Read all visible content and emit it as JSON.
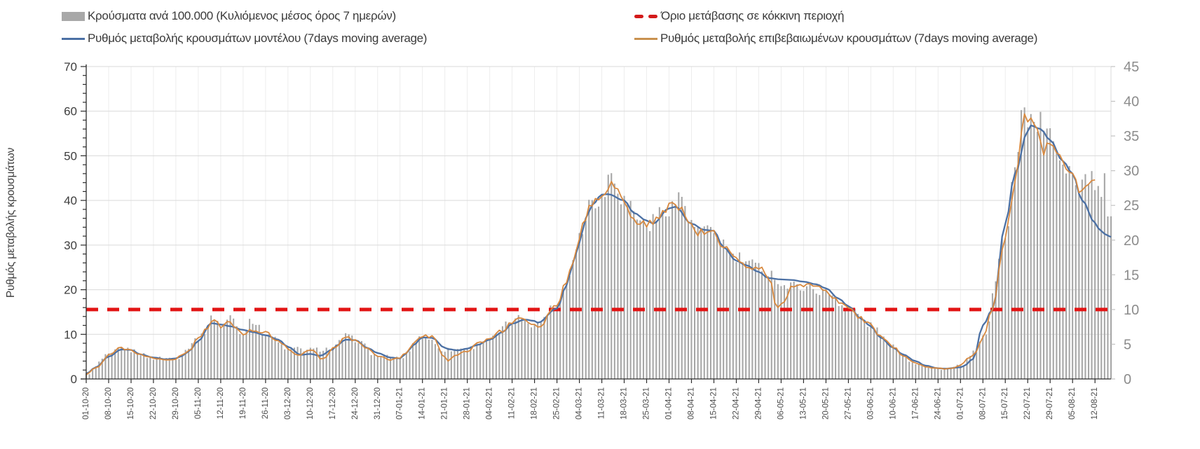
{
  "legend": {
    "items": [
      {
        "id": "cases",
        "label": "Κρούσματα ανά 100.000 (Κυλιόμενος μέσος όρος 7 ημερών)"
      },
      {
        "id": "threshold",
        "label": "Όριο μετάβασης σε κόκκινη περιοχή"
      },
      {
        "id": "model",
        "label": "Ρυθμός μεταβολής κρουσμάτων μοντέλου (7days moving average)"
      },
      {
        "id": "confirmed",
        "label": "Ρυθμός μεταβολής επιβεβαιωμένων κρουσμάτων (7days moving average)"
      }
    ]
  },
  "chart_data": {
    "type": "combo bar+line, dual y-axis",
    "title": "",
    "ylabel_left": "Ρυθμός μεταβολής κρουσμάτων",
    "left_axis": {
      "min": 0,
      "max": 70,
      "tick_step": 10,
      "minor_tick_step": 2,
      "ticks": [
        0,
        10,
        20,
        30,
        40,
        50,
        60,
        70
      ]
    },
    "right_axis": {
      "min": 0,
      "max": 45,
      "tick_step": 5,
      "ticks": [
        0,
        5,
        10,
        15,
        20,
        25,
        30,
        35,
        40,
        45
      ]
    },
    "threshold": {
      "value_right_axis": 10,
      "label": "Όριο μετάβασης σε κόκκινη περιοχή"
    },
    "x_labels": [
      "01-10-20",
      "08-10-20",
      "15-10-20",
      "22-10-20",
      "29-10-20",
      "05-11-20",
      "12-11-20",
      "19-11-20",
      "26-11-20",
      "03-12-20",
      "10-12-20",
      "17-12-20",
      "24-12-20",
      "31-12-20",
      "07-01-21",
      "14-01-21",
      "21-01-21",
      "28-01-21",
      "04-02-21",
      "11-02-21",
      "18-02-21",
      "25-02-21",
      "04-03-21",
      "11-03-21",
      "18-03-21",
      "25-03-21",
      "01-04-21",
      "08-04-21",
      "15-04-21",
      "22-04-21",
      "29-04-21",
      "06-05-21",
      "13-05-21",
      "20-05-21",
      "27-05-21",
      "03-06-21",
      "10-06-21",
      "17-06-21",
      "24-06-21",
      "01-07-21",
      "08-07-21",
      "15-07-21",
      "22-07-21",
      "29-07-21",
      "05-08-21",
      "12-08-21"
    ],
    "x_range": {
      "first_day": "01-10-20",
      "last_day": "17-08-21",
      "total_days": 320
    },
    "series": [
      {
        "id": "cases",
        "name": "Κρούσματα ανά 100.000 (Κυλιόμενος μέσος όρος 7 ημερών)",
        "type": "bar",
        "axis": "right",
        "values": [
          0.7,
          3.4,
          4.1,
          3.0,
          3.0,
          5.8,
          7.6,
          6.4,
          6.6,
          4.4,
          4.2,
          4.4,
          5.7,
          3.3,
          3.0,
          6.2,
          4.2,
          4.4,
          5.8,
          8.2,
          7.8,
          10.6,
          20.6,
          26.0,
          25.7,
          22.2,
          24.8,
          21.9,
          20.9,
          17.4,
          16.1,
          13.4,
          13.4,
          12.5,
          10.3,
          7.7,
          4.6,
          2.3,
          1.5,
          1.9,
          6.1,
          20.3,
          37.6,
          34.7,
          30.5,
          28.3
        ]
      },
      {
        "id": "model",
        "name": "Ρυθμός μεταβολής κρουσμάτων μοντέλου (7days moving average)",
        "type": "line",
        "axis": "left",
        "values": [
          1.2,
          5.0,
          6.5,
          4.8,
          4.6,
          8.5,
          12.2,
          11.0,
          9.8,
          7.2,
          5.6,
          6.6,
          8.7,
          5.8,
          4.6,
          9.3,
          7.0,
          6.8,
          8.8,
          12.4,
          13.0,
          15.8,
          30.5,
          41.3,
          40.0,
          35.5,
          38.2,
          34.8,
          33.2,
          26.5,
          24.0,
          22.3,
          21.8,
          20.3,
          16.3,
          11.8,
          7.0,
          4.0,
          2.4,
          2.6,
          12.0,
          34.7,
          55.5,
          53.5,
          46.0,
          35.0
        ]
      },
      {
        "id": "confirmed",
        "name": "Ρυθμός μεταβολής επιβεβαιωμένων κρουσμάτων (7days moving average)",
        "type": "line",
        "axis": "left",
        "values": [
          1.0,
          5.3,
          6.3,
          4.6,
          4.6,
          9.0,
          11.8,
          9.9,
          10.3,
          6.9,
          6.6,
          6.9,
          8.8,
          5.1,
          4.6,
          9.6,
          4.8,
          6.3,
          9.0,
          12.8,
          12.2,
          16.5,
          32.0,
          40.5,
          40.0,
          34.5,
          38.5,
          34.0,
          32.5,
          26.5,
          25.0,
          16.5,
          20.8,
          19.5,
          16.0,
          12.0,
          7.2,
          3.6,
          2.4,
          3.0,
          9.5,
          31.5,
          58.5,
          52.5,
          45.5,
          44.0
        ]
      }
    ],
    "extra_points": {
      "cases": [
        [
          "12-10-20",
          4.5
        ],
        [
          "10-11-20",
          9.0
        ],
        [
          "15-11-20",
          8.9
        ],
        [
          "21-11-20",
          8.7
        ],
        [
          "21-12-20",
          6.2
        ],
        [
          "14-02-21",
          8.9
        ],
        [
          "28-02-21",
          14.2
        ],
        [
          "08-03-21",
          26.0
        ],
        [
          "14-03-21",
          30.0
        ],
        [
          "05-04-21",
          26.3
        ],
        [
          "04-05-21",
          15.0
        ],
        [
          "27-06-21",
          1.5
        ],
        [
          "06-07-21",
          4.0
        ],
        [
          "18-07-21",
          30.0
        ],
        [
          "21-07-21",
          40.3
        ],
        [
          "26-07-21",
          37.0
        ],
        [
          "30-07-21",
          34.0
        ],
        [
          "03-08-21",
          30.8
        ],
        [
          "06-08-21",
          27.7
        ],
        [
          "09-08-21",
          28.9
        ],
        [
          "13-08-21",
          27.0
        ],
        [
          "14-08-21",
          25.0
        ],
        [
          "15-08-21",
          28.2
        ],
        [
          "16-08-21",
          23.3
        ],
        [
          "17-08-21",
          22.2
        ]
      ],
      "model": [
        [
          "04-10-20",
          2.6
        ],
        [
          "12-10-20",
          6.6
        ],
        [
          "18-10-20",
          5.5
        ],
        [
          "26-10-20",
          4.4
        ],
        [
          "31-10-20",
          5.2
        ],
        [
          "02-11-20",
          6.2
        ],
        [
          "09-11-20",
          12.5
        ],
        [
          "15-11-20",
          11.8
        ],
        [
          "22-11-20",
          10.5
        ],
        [
          "30-11-20",
          8.8
        ],
        [
          "07-12-20",
          5.4
        ],
        [
          "13-12-20",
          5.2
        ],
        [
          "18-12-20",
          7.4
        ],
        [
          "21-12-20",
          8.8
        ],
        [
          "28-12-20",
          6.9
        ],
        [
          "04-01-21",
          4.8
        ],
        [
          "09-01-21",
          5.8
        ],
        [
          "11-01-21",
          7.5
        ],
        [
          "17-01-21",
          9.2
        ],
        [
          "22-01-21",
          6.7
        ],
        [
          "25-01-21",
          6.4
        ],
        [
          "31-01-21",
          7.6
        ],
        [
          "08-02-21",
          10.5
        ],
        [
          "15-02-21",
          13.3
        ],
        [
          "19-02-21",
          12.6
        ],
        [
          "28-02-21",
          21.0
        ],
        [
          "02-03-21",
          26.0
        ],
        [
          "06-03-21",
          36.0
        ],
        [
          "08-03-21",
          39.0
        ],
        [
          "13-03-21",
          41.4
        ],
        [
          "21-03-21",
          37.2
        ],
        [
          "27-03-21",
          34.8
        ],
        [
          "03-04-21",
          38.6
        ],
        [
          "12-04-21",
          33.4
        ],
        [
          "18-04-21",
          29.5
        ],
        [
          "25-04-21",
          25.5
        ],
        [
          "02-05-21",
          22.6
        ],
        [
          "09-05-21",
          22.2
        ],
        [
          "17-05-21",
          21.2
        ],
        [
          "24-05-21",
          18.0
        ],
        [
          "31-05-21",
          13.5
        ],
        [
          "06-06-21",
          9.3
        ],
        [
          "13-06-21",
          5.5
        ],
        [
          "20-06-21",
          3.0
        ],
        [
          "26-06-21",
          2.3
        ],
        [
          "02-07-21",
          2.9
        ],
        [
          "05-07-21",
          4.5
        ],
        [
          "11-07-21",
          15.6
        ],
        [
          "18-07-21",
          46.0
        ],
        [
          "23-07-21",
          56.8
        ],
        [
          "26-07-21",
          56.0
        ],
        [
          "02-08-21",
          48.8
        ],
        [
          "08-08-21",
          40.0
        ],
        [
          "13-08-21",
          33.8
        ],
        [
          "15-08-21",
          32.5
        ],
        [
          "17-08-21",
          31.8
        ]
      ],
      "confirmed": [
        [
          "04-10-20",
          2.5
        ],
        [
          "12-10-20",
          7.0
        ],
        [
          "18-10-20",
          5.4
        ],
        [
          "26-10-20",
          4.3
        ],
        [
          "31-10-20",
          5.4
        ],
        [
          "02-11-20",
          6.3
        ],
        [
          "08-11-20",
          11.6
        ],
        [
          "10-11-20",
          13.7
        ],
        [
          "15-11-20",
          12.8
        ],
        [
          "17-11-20",
          11.3
        ],
        [
          "21-11-20",
          10.8
        ],
        [
          "30-11-20",
          8.7
        ],
        [
          "06-12-20",
          5.2
        ],
        [
          "14-12-20",
          4.4
        ],
        [
          "18-12-20",
          7.2
        ],
        [
          "21-12-20",
          9.3
        ],
        [
          "28-12-20",
          6.8
        ],
        [
          "04-01-21",
          4.3
        ],
        [
          "09-01-21",
          6.0
        ],
        [
          "11-01-21",
          7.8
        ],
        [
          "17-01-21",
          9.4
        ],
        [
          "22-01-21",
          4.2
        ],
        [
          "25-01-21",
          5.4
        ],
        [
          "31-01-21",
          7.8
        ],
        [
          "08-02-21",
          10.8
        ],
        [
          "14-02-21",
          13.6
        ],
        [
          "19-02-21",
          11.3
        ],
        [
          "28-02-21",
          22.0
        ],
        [
          "02-03-21",
          26.5
        ],
        [
          "06-03-21",
          36.5
        ],
        [
          "08-03-21",
          39.5
        ],
        [
          "14-03-21",
          43.5
        ],
        [
          "22-03-21",
          34.6
        ],
        [
          "28-03-21",
          35.5
        ],
        [
          "04-04-21",
          38.8
        ],
        [
          "11-04-21",
          32.8
        ],
        [
          "18-04-21",
          30.0
        ],
        [
          "25-04-21",
          25.2
        ],
        [
          "02-05-21",
          23.0
        ],
        [
          "05-05-21",
          15.8
        ],
        [
          "10-05-21",
          21.2
        ],
        [
          "17-05-21",
          21.0
        ],
        [
          "24-05-21",
          17.3
        ],
        [
          "31-05-21",
          13.5
        ],
        [
          "06-06-21",
          9.5
        ],
        [
          "13-06-21",
          5.3
        ],
        [
          "20-06-21",
          2.8
        ],
        [
          "27-06-21",
          2.3
        ],
        [
          "04-07-21",
          4.8
        ],
        [
          "06-07-21",
          6.2
        ],
        [
          "11-07-21",
          16.0
        ],
        [
          "18-07-21",
          44.0
        ],
        [
          "21-07-21",
          59.3
        ],
        [
          "24-07-21",
          57.0
        ],
        [
          "27-07-21",
          51.0
        ],
        [
          "31-07-21",
          51.5
        ],
        [
          "03-08-21",
          48.0
        ],
        [
          "08-08-21",
          41.5
        ],
        [
          "10-08-21",
          44.5
        ]
      ]
    },
    "colors": {
      "bars": "#a7a7a7",
      "model_line": "#4b70a4",
      "confirmed_line": "#d8893f",
      "threshold_line": "#e21414",
      "h_gridline": "#d9d9d9",
      "v_gridline": "#ededed",
      "axis_line": "#2b2b2b",
      "right_axis_line": "#d9d9d9",
      "left_tick_label": "#3d3d3d",
      "right_tick_label": "#8c8c8c",
      "x_tick_label": "#4d4d4d",
      "background": "#ffffff"
    },
    "legend_position": "top",
    "grid": {
      "horizontal": true,
      "vertical": true
    }
  }
}
